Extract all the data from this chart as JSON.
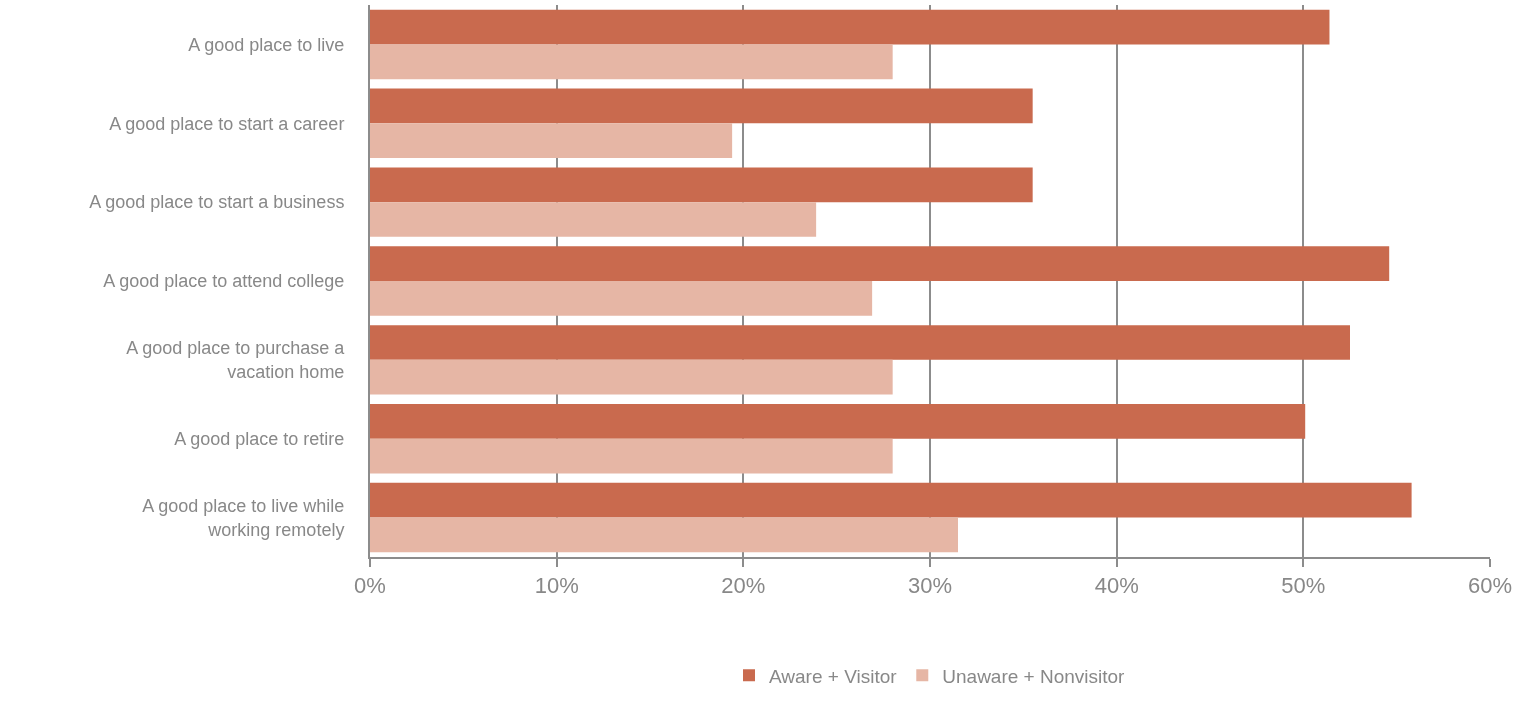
{
  "chart_data": {
    "type": "bar",
    "orientation": "horizontal",
    "categories": [
      "A good place to live",
      "A good place to start a career",
      "A good place to start a business",
      "A good place to attend college",
      "A good place to purchase a\nvacation home",
      "A good place to retire",
      "A good place to live while\nworking remotely"
    ],
    "series": [
      {
        "name": "Aware + Visitor",
        "color": "#c96a4e",
        "values": [
          51.4,
          35.5,
          35.5,
          54.6,
          52.5,
          50.1,
          55.8
        ]
      },
      {
        "name": "Unaware + Nonvisitor",
        "color": "#e6b6a5",
        "values": [
          28.0,
          19.4,
          23.9,
          26.9,
          28.0,
          28.0,
          31.5
        ]
      }
    ],
    "xlim": [
      0,
      60
    ],
    "xticks": [
      {
        "value": 0,
        "label": "0%"
      },
      {
        "value": 10,
        "label": "10%"
      },
      {
        "value": 20,
        "label": "20%"
      },
      {
        "value": 30,
        "label": "30%"
      },
      {
        "value": 40,
        "label": "40%"
      },
      {
        "value": 50,
        "label": "50%"
      },
      {
        "value": 60,
        "label": "60%"
      }
    ],
    "grid": "x",
    "legend": "bottom"
  }
}
